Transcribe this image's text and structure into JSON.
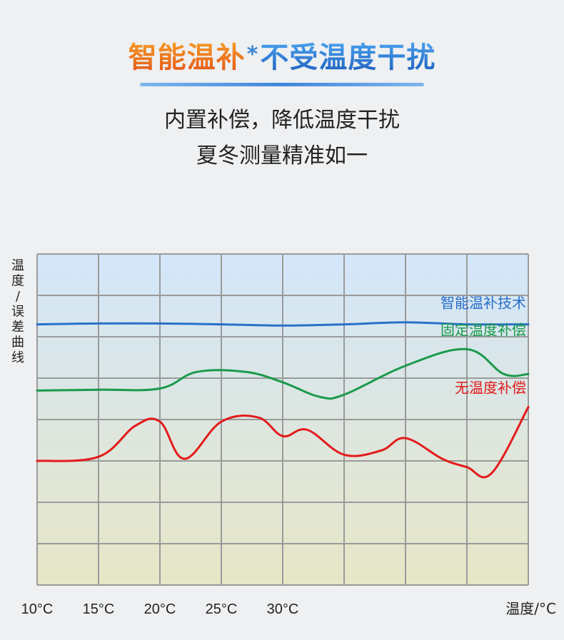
{
  "header": {
    "title_part1": "智能温补",
    "title_star": "*",
    "title_part2": "不受温度干扰",
    "subtitle_line1": "内置补偿，降低温度干扰",
    "subtitle_line2": "夏冬测量精准如一"
  },
  "colors": {
    "title_orange": "#ec6d1f",
    "title_blue": "#2f79d2",
    "smart": "#2a6fc9",
    "fixed": "#1a9a4a",
    "none": "#e31b1b",
    "grid": "#9a9a9a",
    "plot_top": "#d3e6fa",
    "plot_bottom": "#e7e6c6"
  },
  "chart_data": {
    "type": "line",
    "ylabel": "温度/误差曲线",
    "xlabel": "温度/°C",
    "xlim": [
      10,
      50
    ],
    "ylim": [
      0,
      8
    ],
    "x_ticks": [
      10,
      15,
      20,
      25,
      30
    ],
    "x_tick_labels": [
      "10°C",
      "15°C",
      "20°C",
      "25°C",
      "30°C"
    ],
    "grid": true,
    "legend_placement": "inline-right",
    "series": [
      {
        "name": "智能温补技术",
        "color": "#2a6fc9",
        "x": [
          10,
          15,
          20,
          25,
          30,
          35,
          40,
          45,
          50
        ],
        "y": [
          6.3,
          6.32,
          6.32,
          6.3,
          6.27,
          6.3,
          6.35,
          6.3,
          6.3
        ]
      },
      {
        "name": "固定温度补偿",
        "color": "#1a9a4a",
        "x": [
          10,
          15,
          20,
          23,
          27,
          30,
          33,
          35,
          40,
          45,
          48,
          50
        ],
        "y": [
          4.7,
          4.72,
          4.75,
          5.15,
          5.15,
          4.9,
          4.55,
          4.6,
          5.3,
          5.7,
          5.1,
          5.1
        ]
      },
      {
        "name": "无温度补偿",
        "color": "#e31b1b",
        "x": [
          10,
          15,
          18,
          20,
          22,
          25,
          28,
          30,
          32,
          35,
          38,
          40,
          43,
          45,
          47,
          50
        ],
        "y": [
          3.0,
          3.1,
          3.85,
          3.95,
          3.05,
          3.95,
          4.05,
          3.6,
          3.75,
          3.15,
          3.25,
          3.55,
          3.05,
          2.85,
          2.7,
          4.3
        ]
      }
    ]
  }
}
